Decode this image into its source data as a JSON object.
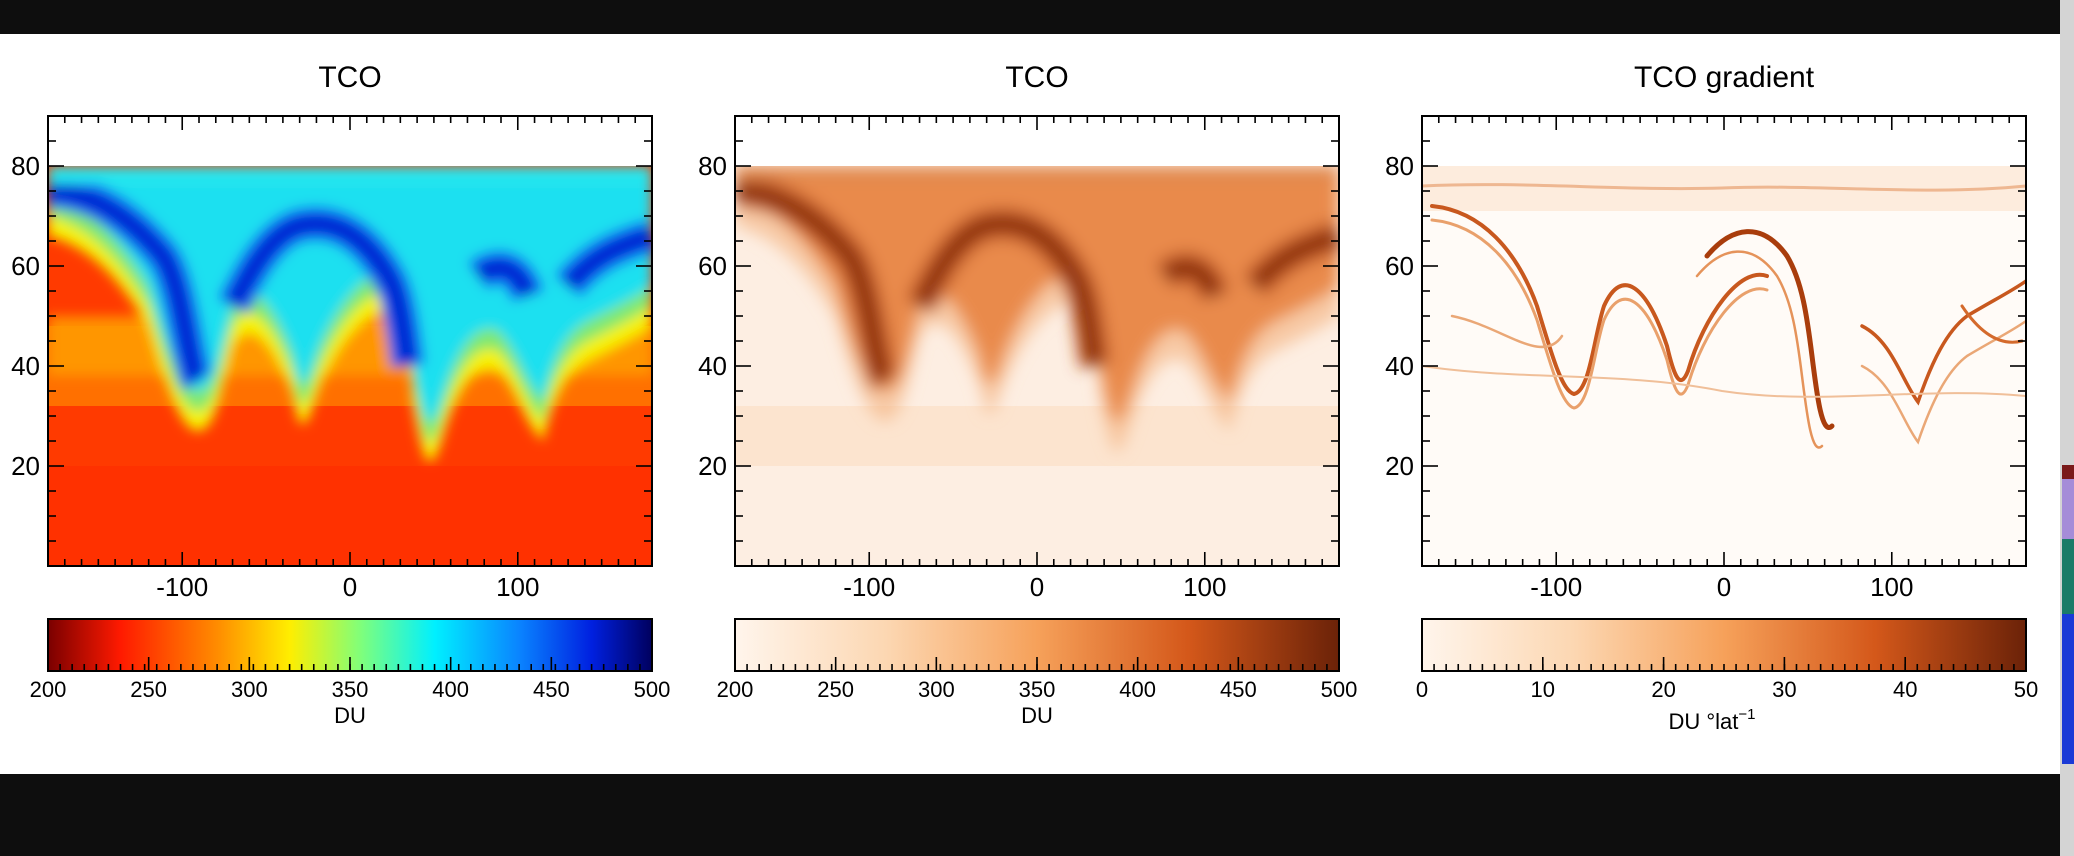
{
  "colors": {
    "page_background": "#0e0e0e",
    "figure_background": "#ffffff",
    "edge_strip": "#d4d4d4",
    "edge_marks": [
      "#7a1a1a",
      "#a58cd8",
      "#1b7b68",
      "#1a3ad6"
    ]
  },
  "chart_data": [
    {
      "type": "heatmap",
      "title": "TCO",
      "colormap": "jet (reversed: red low, blue high)",
      "xlim": [
        -180,
        180
      ],
      "ylim": [
        0,
        90
      ],
      "data_ymax": 80,
      "xticks": [
        -100,
        0,
        100
      ],
      "yticks": [
        20,
        40,
        60,
        80
      ],
      "colorbar": {
        "min": 200,
        "max": 500,
        "ticks": [
          200,
          250,
          300,
          350,
          400,
          450,
          500
        ],
        "label": "DU"
      },
      "field_description": "high values (blue) across mid/high latitudes forming wave patterns, low values (red) in tropics"
    },
    {
      "type": "heatmap",
      "title": "TCO",
      "colormap": "oranges (light low, dark brown high)",
      "xlim": [
        -180,
        180
      ],
      "ylim": [
        0,
        90
      ],
      "data_ymax": 80,
      "xticks": [
        -100,
        0,
        100
      ],
      "yticks": [
        20,
        40,
        60,
        80
      ],
      "colorbar": {
        "min": 200,
        "max": 500,
        "ticks": [
          200,
          250,
          300,
          350,
          400,
          450,
          500
        ],
        "label": "DU"
      }
    },
    {
      "type": "heatmap",
      "title": "TCO gradient",
      "colormap": "oranges (white low, dark brown high)",
      "xlim": [
        -180,
        180
      ],
      "ylim": [
        0,
        90
      ],
      "data_ymax": 80,
      "xticks": [
        -100,
        0,
        100
      ],
      "yticks": [
        20,
        40,
        60,
        80
      ],
      "colorbar": {
        "min": 0,
        "max": 50,
        "ticks": [
          0,
          10,
          20,
          30,
          40,
          50
        ],
        "label": "DU °lat",
        "label_superscript": "−1"
      }
    }
  ]
}
